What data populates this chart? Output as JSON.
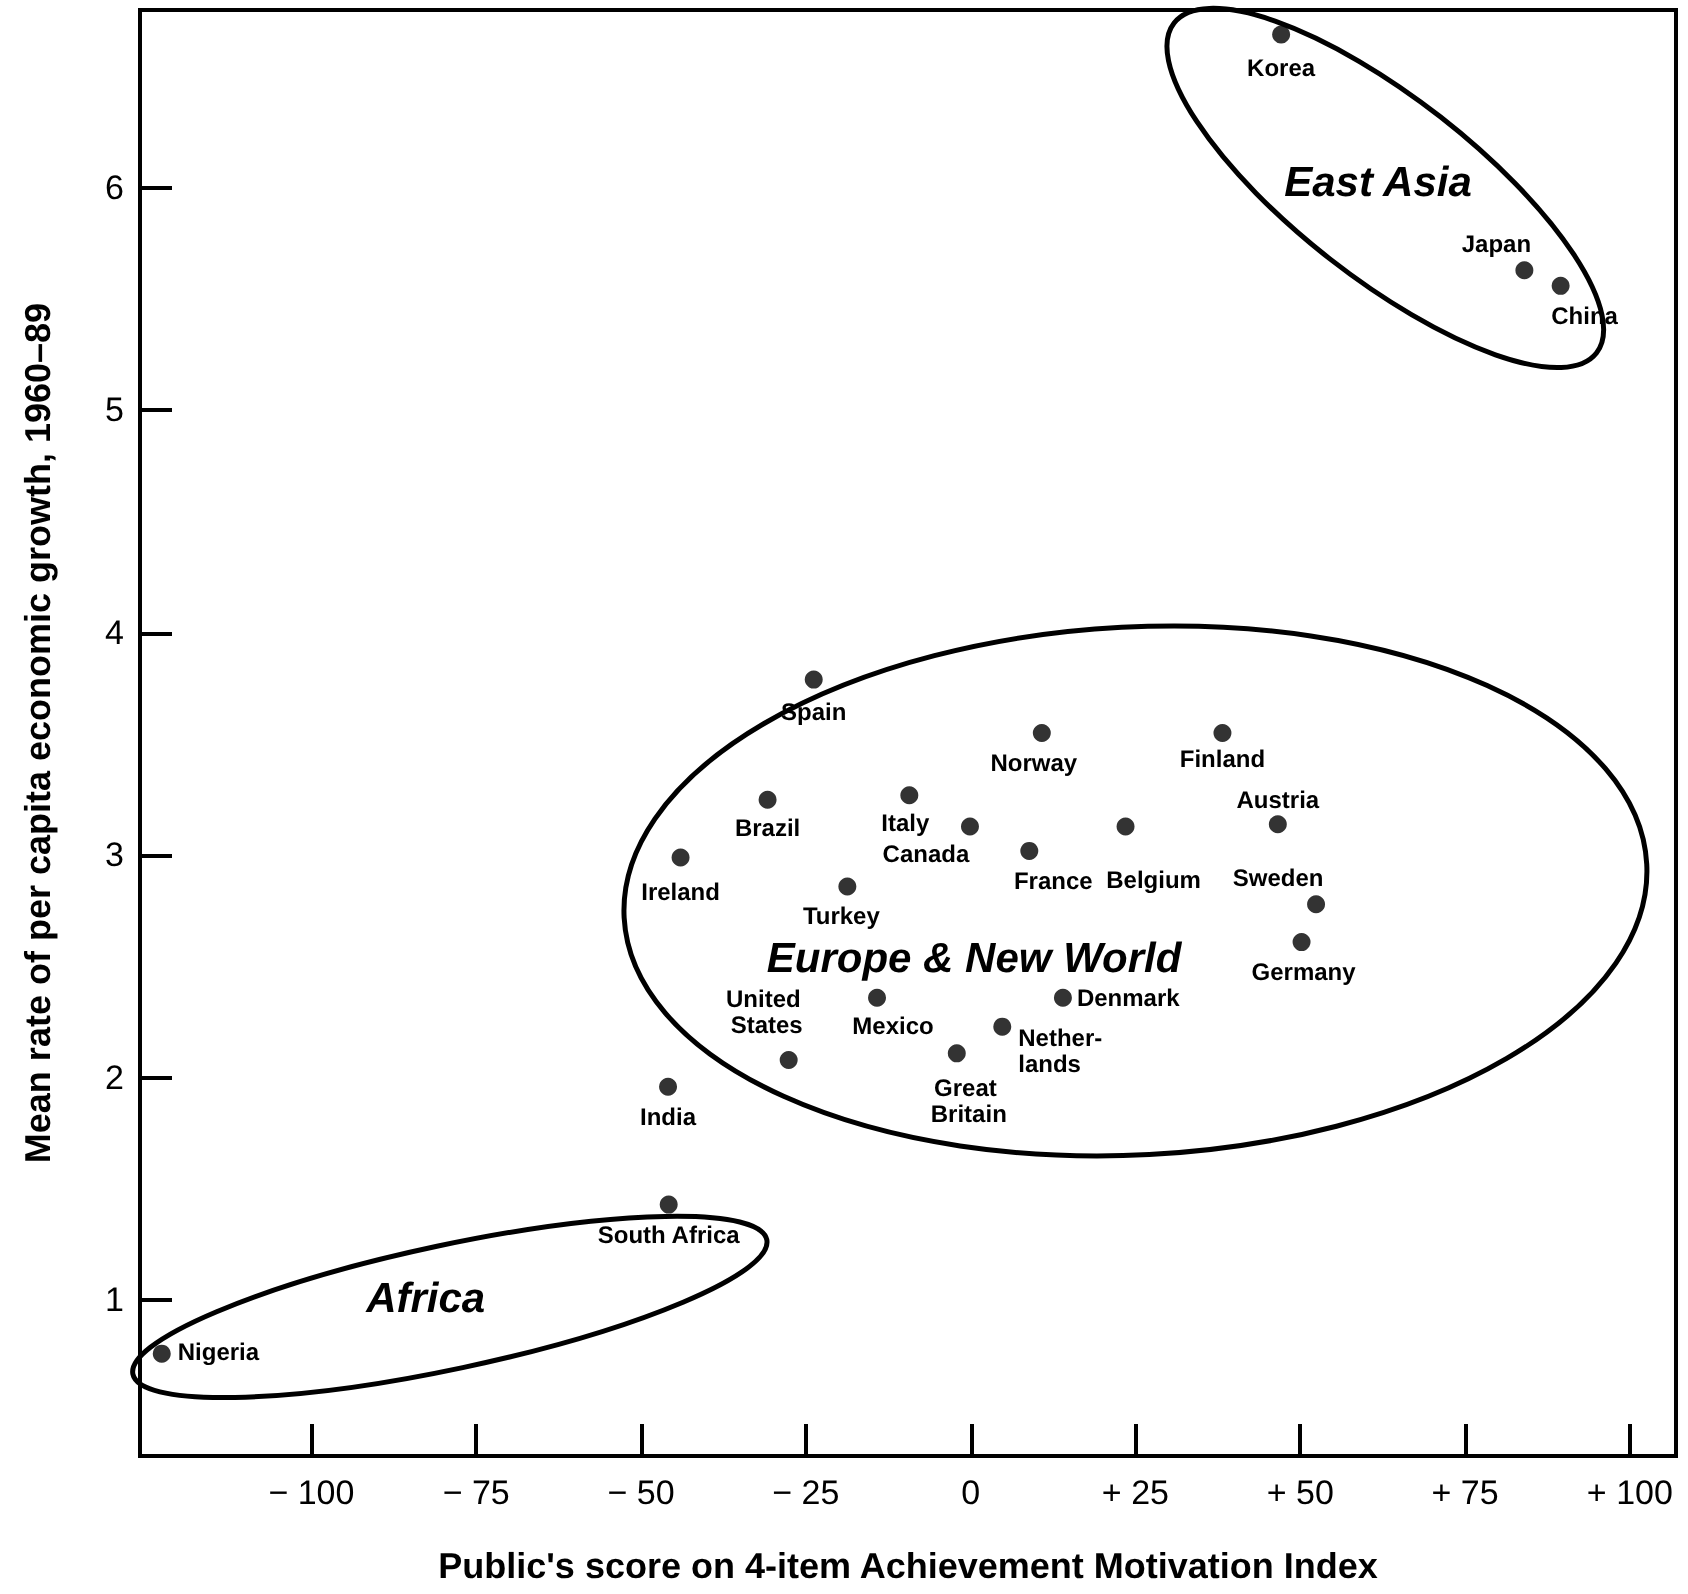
{
  "chart_data": {
    "type": "scatter",
    "xlabel": "Public's score on 4-item Achievement Motivation Index",
    "ylabel": "Mean rate of per capita economic growth, 1960–89",
    "x": [
      47.1,
      84.0,
      89.5,
      -23.8,
      -30.8,
      -9.3,
      -44.0,
      -18.7,
      -27.6,
      -14.2,
      -45.9,
      -45.8,
      -122.7,
      10.8,
      38.2,
      -0.1,
      8.9,
      23.5,
      46.6,
      52.4,
      50.2,
      14.0,
      4.8,
      -2.1
    ],
    "values": [
      6.69,
      5.63,
      5.56,
      3.79,
      3.25,
      3.27,
      2.99,
      2.86,
      2.08,
      2.36,
      1.96,
      1.43,
      0.76,
      3.55,
      3.55,
      3.13,
      3.02,
      3.13,
      3.14,
      2.78,
      2.61,
      2.36,
      2.23,
      2.11
    ],
    "color": "#000000",
    "marker": "circle",
    "grid": false,
    "xlim": [
      -126,
      107
    ],
    "ylim": [
      0.3,
      6.8
    ],
    "xticks": [
      {
        "value": -100,
        "label": "− 100"
      },
      {
        "value": -75,
        "label": "− 75"
      },
      {
        "value": -50,
        "label": "− 50"
      },
      {
        "value": -25,
        "label": "− 25"
      },
      0,
      {
        "value": 25,
        "label": "+ 25"
      },
      {
        "value": 50,
        "label": "+ 50"
      },
      {
        "value": 75,
        "label": "+ 75"
      },
      {
        "value": 100,
        "label": "+ 100"
      }
    ],
    "yticks": [
      1,
      2,
      3,
      4,
      5,
      6
    ],
    "annotations": [
      {
        "text": "Korea",
        "x": 47.1,
        "y": 6.69
      },
      {
        "text": "Japan",
        "x": 84.0,
        "y": 5.63
      },
      {
        "text": "China",
        "x": 89.5,
        "y": 5.56
      },
      {
        "text": "Spain",
        "x": -23.8,
        "y": 3.79
      },
      {
        "text": "Brazil",
        "x": -30.8,
        "y": 3.25
      },
      {
        "text": "Italy",
        "x": -9.3,
        "y": 3.27
      },
      {
        "text": "Ireland",
        "x": -44.0,
        "y": 2.99
      },
      {
        "text": "Turkey",
        "x": -18.7,
        "y": 2.86
      },
      {
        "text": "United States",
        "x": -27.6,
        "y": 2.08
      },
      {
        "text": "Mexico",
        "x": -14.2,
        "y": 2.36
      },
      {
        "text": "India",
        "x": -45.9,
        "y": 1.96
      },
      {
        "text": "South Africa",
        "x": -45.8,
        "y": 1.43
      },
      {
        "text": "Nigeria",
        "x": -122.7,
        "y": 0.76
      },
      {
        "text": "Norway",
        "x": 10.8,
        "y": 3.55
      },
      {
        "text": "Finland",
        "x": 38.2,
        "y": 3.55
      },
      {
        "text": "Canada",
        "x": -0.1,
        "y": 3.13
      },
      {
        "text": "France",
        "x": 8.9,
        "y": 3.02
      },
      {
        "text": "Belgium",
        "x": 23.5,
        "y": 3.13
      },
      {
        "text": "Austria",
        "x": 46.6,
        "y": 3.14
      },
      {
        "text": "Sweden",
        "x": 52.4,
        "y": 2.78
      },
      {
        "text": "Germany",
        "x": 50.2,
        "y": 2.61
      },
      {
        "text": "Denmark",
        "x": 14.0,
        "y": 2.36
      },
      {
        "text": "Nether- lands",
        "x": 4.8,
        "y": 2.23
      },
      {
        "text": "Great Britain",
        "x": -2.1,
        "y": 2.11
      },
      "East Asia",
      "Europe & New World",
      "Africa"
    ]
  }
}
